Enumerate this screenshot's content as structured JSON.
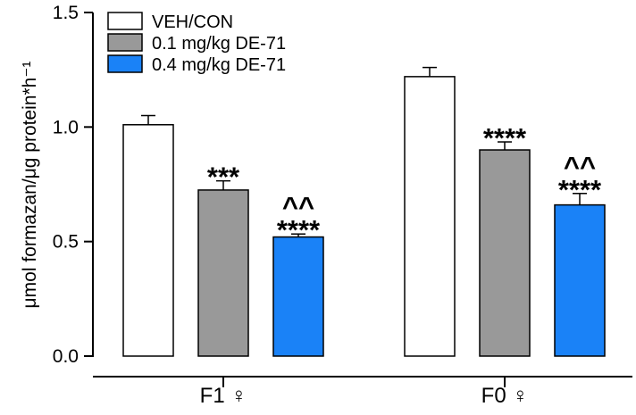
{
  "chart_data": {
    "type": "bar",
    "ylabel": "μmol formazan/μg protein*h⁻¹",
    "ylim": [
      0,
      1.5
    ],
    "yticks": [
      "0.0",
      "0.5",
      "1.0",
      "1.5"
    ],
    "categories": [
      "F1 ♀",
      "F0 ♀"
    ],
    "series": [
      {
        "name": "VEH/CON",
        "color": "#ffffff",
        "values": [
          1.01,
          1.22
        ],
        "errors": [
          0.04,
          0.04
        ],
        "annotations": [
          "",
          ""
        ]
      },
      {
        "name": "0.1 mg/kg DE-71",
        "color": "#999999",
        "values": [
          0.725,
          0.9
        ],
        "errors": [
          0.04,
          0.035
        ],
        "annotations": [
          "***",
          "****"
        ]
      },
      {
        "name": "0.4 mg/kg DE-71",
        "color": "#1a82f7",
        "values": [
          0.52,
          0.66
        ],
        "errors": [
          0.013,
          0.05
        ],
        "annotations": [
          "^^\n****",
          "^^\n****"
        ]
      }
    ],
    "legend_position": "top-left",
    "grid": false
  }
}
